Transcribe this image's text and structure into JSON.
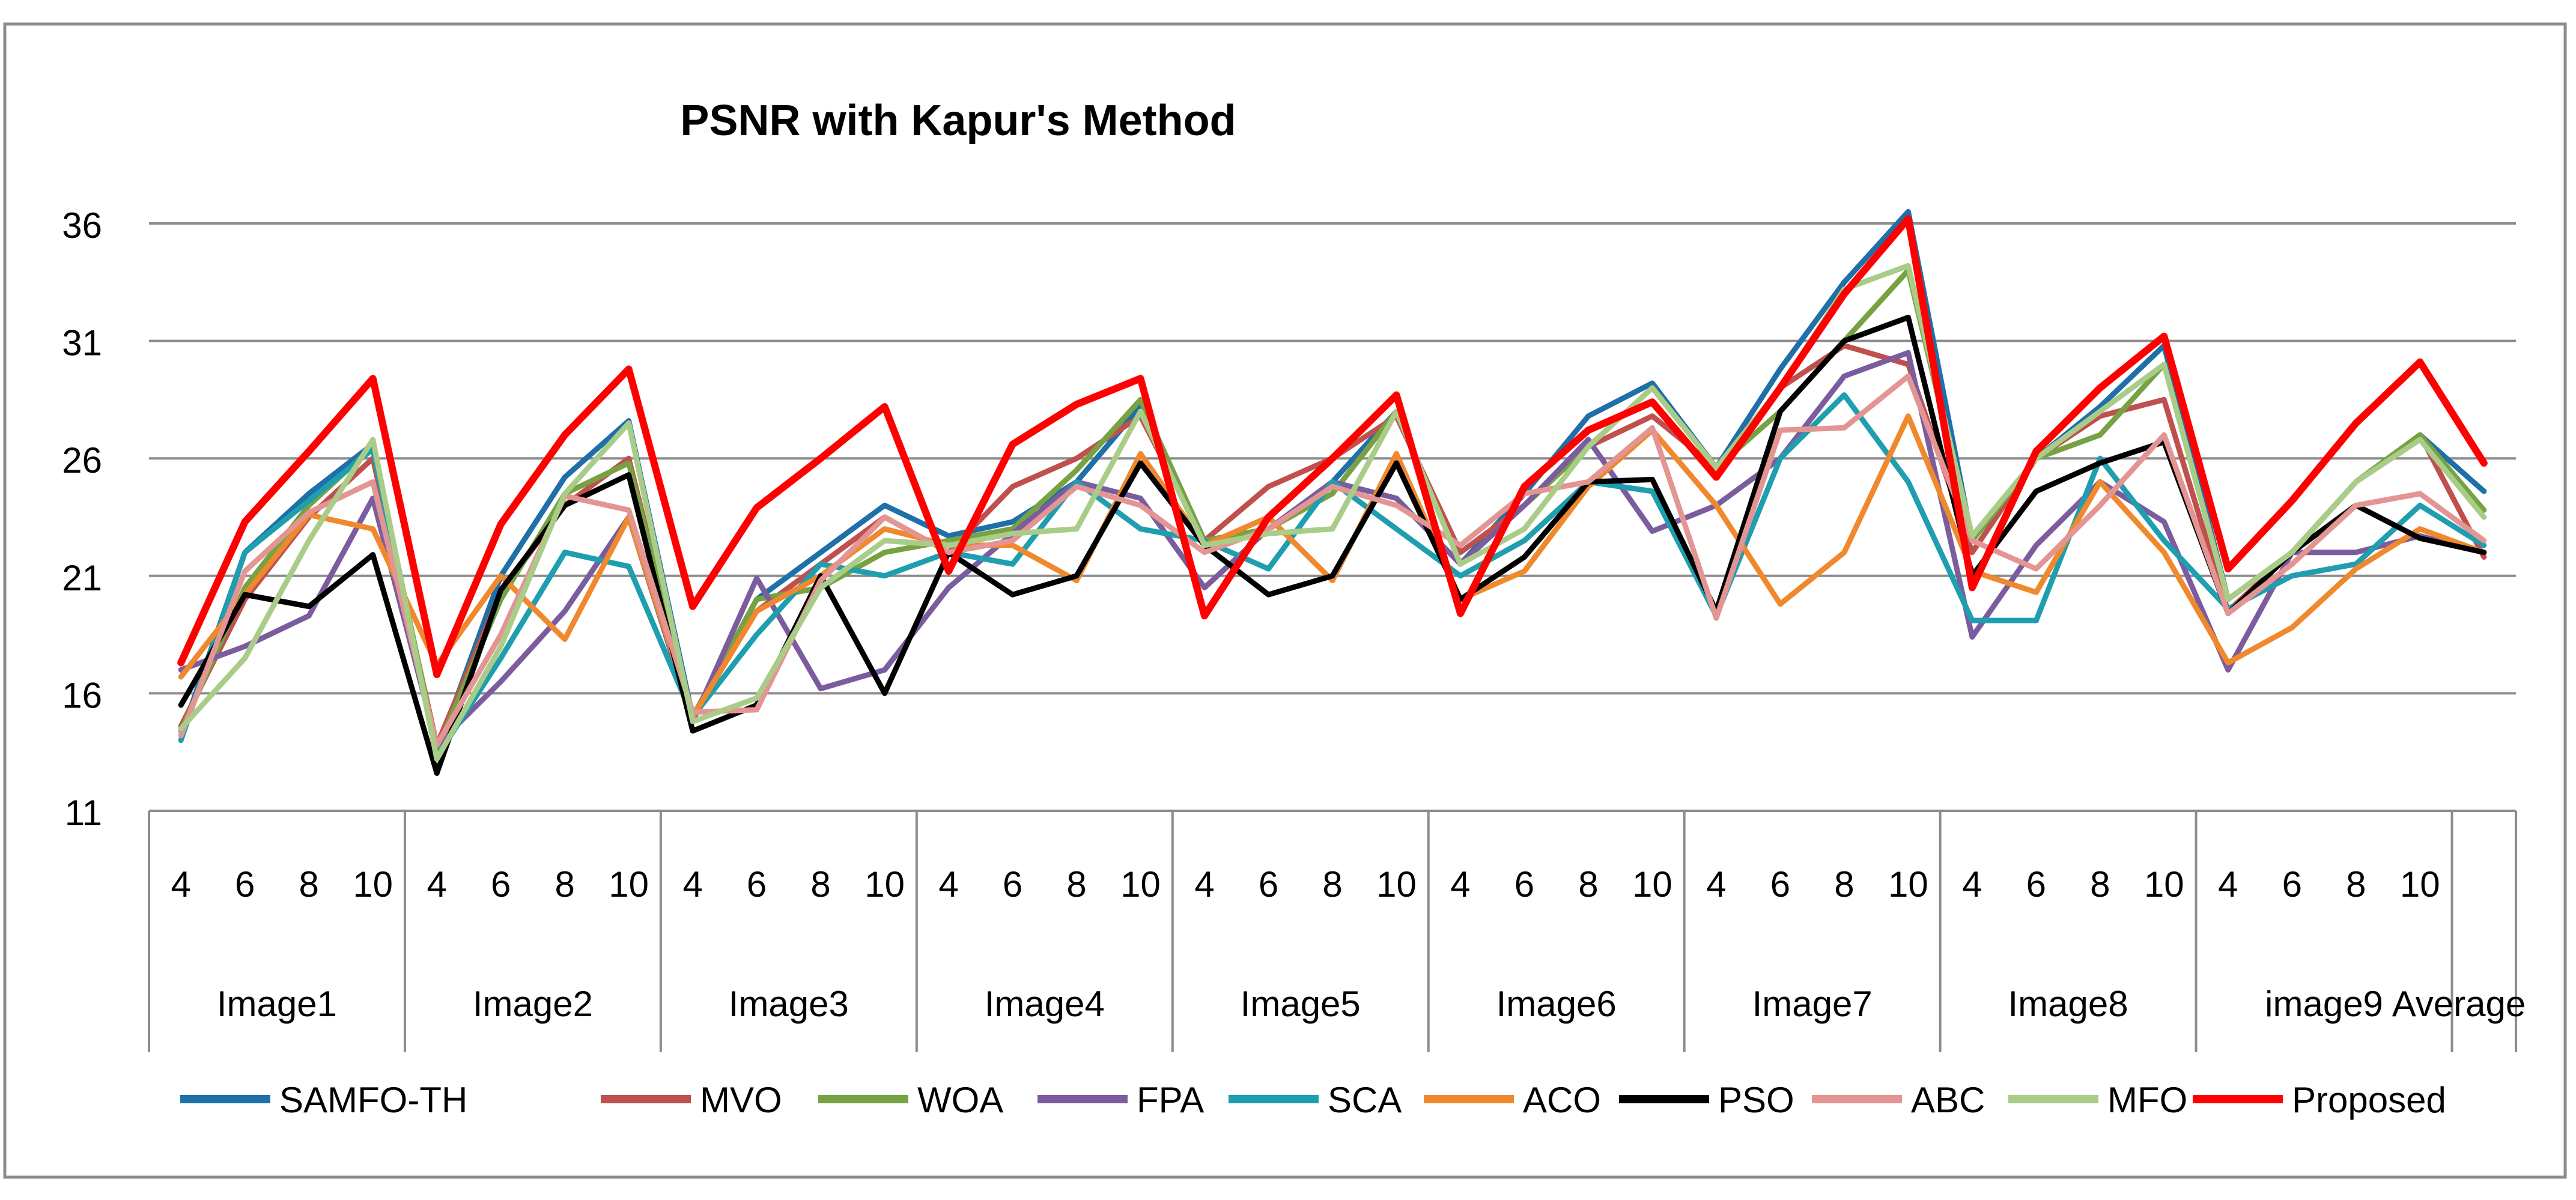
{
  "chart_data": {
    "type": "line",
    "title": "PSNR with Kapur's Method",
    "xlabel": "",
    "ylabel": "",
    "ylim": [
      11,
      36
    ],
    "yticks": [
      11,
      16,
      21,
      26,
      31,
      36
    ],
    "grid": true,
    "legend_position": "bottom",
    "groups": [
      {
        "label": "Image1",
        "levels": [
          "4",
          "6",
          "8",
          "10"
        ]
      },
      {
        "label": "Image2",
        "levels": [
          "4",
          "6",
          "8",
          "10"
        ]
      },
      {
        "label": "Image3",
        "levels": [
          "4",
          "6",
          "8",
          "10"
        ]
      },
      {
        "label": "Image4",
        "levels": [
          "4",
          "6",
          "8",
          "10"
        ]
      },
      {
        "label": "Image5",
        "levels": [
          "4",
          "6",
          "8",
          "10"
        ]
      },
      {
        "label": "Image6",
        "levels": [
          "4",
          "6",
          "8",
          "10"
        ]
      },
      {
        "label": "Image7",
        "levels": [
          "4",
          "6",
          "8",
          "10"
        ]
      },
      {
        "label": "Image8",
        "levels": [
          "4",
          "6",
          "8",
          "10"
        ]
      },
      {
        "label": "image9",
        "levels": [
          "4",
          "6",
          "8",
          "10"
        ]
      },
      {
        "label": "Average",
        "levels": [
          ""
        ]
      }
    ],
    "series": [
      {
        "name": "SAMFO-TH",
        "color": "#1F6FA8",
        "values": [
          14.2,
          22.0,
          24.5,
          26.6,
          13.5,
          21.0,
          25.2,
          27.6,
          15.0,
          20.0,
          22.0,
          24.0,
          22.7,
          23.3,
          25.0,
          28.2,
          22.5,
          23.0,
          25.0,
          28.0,
          21.5,
          24.5,
          27.8,
          29.2,
          25.6,
          29.8,
          33.5,
          36.5,
          22.5,
          26.0,
          28.2,
          30.8,
          20.0,
          22.0,
          25.0,
          27.0,
          24.6
        ]
      },
      {
        "name": "MVO",
        "color": "#C0504D",
        "values": [
          14.6,
          20.0,
          23.5,
          26.0,
          13.8,
          20.3,
          24.0,
          26.0,
          15.0,
          19.5,
          21.5,
          23.5,
          22.0,
          24.8,
          26.0,
          27.8,
          22.5,
          24.8,
          26.0,
          27.8,
          22.0,
          24.0,
          26.5,
          27.8,
          25.6,
          29.0,
          30.8,
          30.0,
          22.0,
          26.0,
          27.8,
          28.5,
          19.5,
          22.0,
          25.0,
          27.0,
          21.8
        ]
      },
      {
        "name": "WOA",
        "color": "#77A244",
        "values": [
          14.4,
          20.5,
          24.0,
          26.5,
          13.6,
          20.0,
          24.5,
          25.8,
          15.0,
          20.0,
          20.5,
          22.0,
          22.5,
          23.0,
          25.5,
          28.5,
          22.5,
          23.0,
          24.5,
          28.0,
          21.5,
          24.0,
          26.5,
          29.0,
          25.6,
          28.0,
          31.0,
          34.0,
          22.5,
          26.0,
          27.0,
          30.0,
          20.0,
          22.0,
          25.0,
          27.0,
          23.8
        ]
      },
      {
        "name": "FPA",
        "color": "#7B5C9E",
        "values": [
          17.0,
          18.0,
          19.3,
          24.3,
          13.8,
          16.5,
          19.5,
          23.5,
          14.8,
          20.9,
          16.2,
          17.0,
          20.5,
          22.8,
          25.0,
          24.3,
          20.5,
          23.0,
          25.0,
          24.3,
          21.5,
          24.0,
          26.8,
          22.9,
          24.0,
          26.0,
          29.5,
          30.5,
          18.4,
          22.3,
          25.0,
          23.3,
          17.0,
          22.0,
          22.0,
          22.7,
          22.0
        ]
      },
      {
        "name": "SCA",
        "color": "#1E9EAE",
        "values": [
          14.0,
          22.0,
          24.2,
          26.4,
          13.3,
          17.5,
          22.0,
          21.4,
          15.0,
          18.5,
          21.5,
          21.0,
          22.0,
          21.5,
          25.0,
          23.0,
          22.5,
          21.3,
          25.0,
          23.0,
          21.0,
          22.5,
          25.0,
          24.6,
          19.3,
          26.0,
          28.7,
          25.0,
          19.1,
          19.1,
          26.0,
          22.5,
          19.6,
          21.0,
          21.5,
          24.0,
          22.3
        ]
      },
      {
        "name": "ACO",
        "color": "#F0882E",
        "values": [
          16.7,
          20.2,
          23.6,
          23.0,
          17.2,
          21.0,
          18.3,
          23.5,
          15.0,
          19.5,
          21.0,
          23.0,
          22.3,
          22.3,
          20.8,
          26.2,
          22.3,
          23.5,
          20.8,
          26.2,
          20.0,
          21.2,
          24.8,
          27.2,
          24.0,
          19.8,
          22.0,
          27.8,
          21.2,
          20.3,
          25.0,
          22.0,
          17.3,
          18.8,
          21.3,
          23.0,
          22.0
        ]
      },
      {
        "name": "PSO",
        "color": "#000000",
        "values": [
          15.5,
          20.2,
          19.7,
          21.9,
          12.6,
          20.4,
          24.0,
          25.3,
          14.4,
          15.5,
          21.0,
          16.0,
          22.0,
          20.2,
          21.0,
          25.8,
          22.3,
          20.2,
          21.0,
          25.8,
          20.0,
          21.8,
          25.0,
          25.1,
          19.5,
          28.0,
          31.0,
          32.0,
          21.0,
          24.6,
          25.8,
          26.7,
          19.4,
          22.0,
          24.0,
          22.6,
          22.0
        ]
      },
      {
        "name": "ABC",
        "color": "#E39593",
        "values": [
          14.2,
          21.2,
          23.7,
          25.0,
          13.8,
          18.5,
          24.4,
          23.8,
          15.2,
          15.3,
          20.8,
          23.5,
          22.0,
          22.5,
          24.8,
          24.0,
          22.0,
          23.0,
          24.8,
          24.0,
          22.3,
          24.5,
          25.0,
          27.3,
          19.2,
          27.2,
          27.3,
          29.5,
          22.5,
          21.3,
          24.0,
          27.0,
          19.4,
          21.5,
          24.0,
          24.5,
          22.5
        ]
      },
      {
        "name": "MFO",
        "color": "#A9CD88",
        "values": [
          14.5,
          17.5,
          22.5,
          26.8,
          13.2,
          18.0,
          24.5,
          27.5,
          14.8,
          15.8,
          20.5,
          22.5,
          22.3,
          22.8,
          23.0,
          28.0,
          22.3,
          22.8,
          23.0,
          28.0,
          21.5,
          23.0,
          26.5,
          29.0,
          25.6,
          29.0,
          33.2,
          34.2,
          22.7,
          26.0,
          28.0,
          30.0,
          20.0,
          22.0,
          25.0,
          26.8,
          23.5
        ]
      },
      {
        "name": "Proposed",
        "color": "#FF0000",
        "values": [
          17.3,
          23.3,
          26.3,
          29.4,
          16.8,
          23.2,
          27.0,
          29.8,
          19.7,
          23.9,
          26.0,
          28.2,
          21.2,
          26.6,
          28.3,
          29.4,
          19.3,
          23.5,
          26.0,
          28.7,
          19.4,
          24.8,
          27.2,
          28.4,
          25.2,
          29.0,
          33.0,
          36.2,
          20.5,
          26.3,
          29.0,
          31.2,
          21.3,
          24.2,
          27.5,
          30.1,
          25.8
        ]
      }
    ]
  }
}
